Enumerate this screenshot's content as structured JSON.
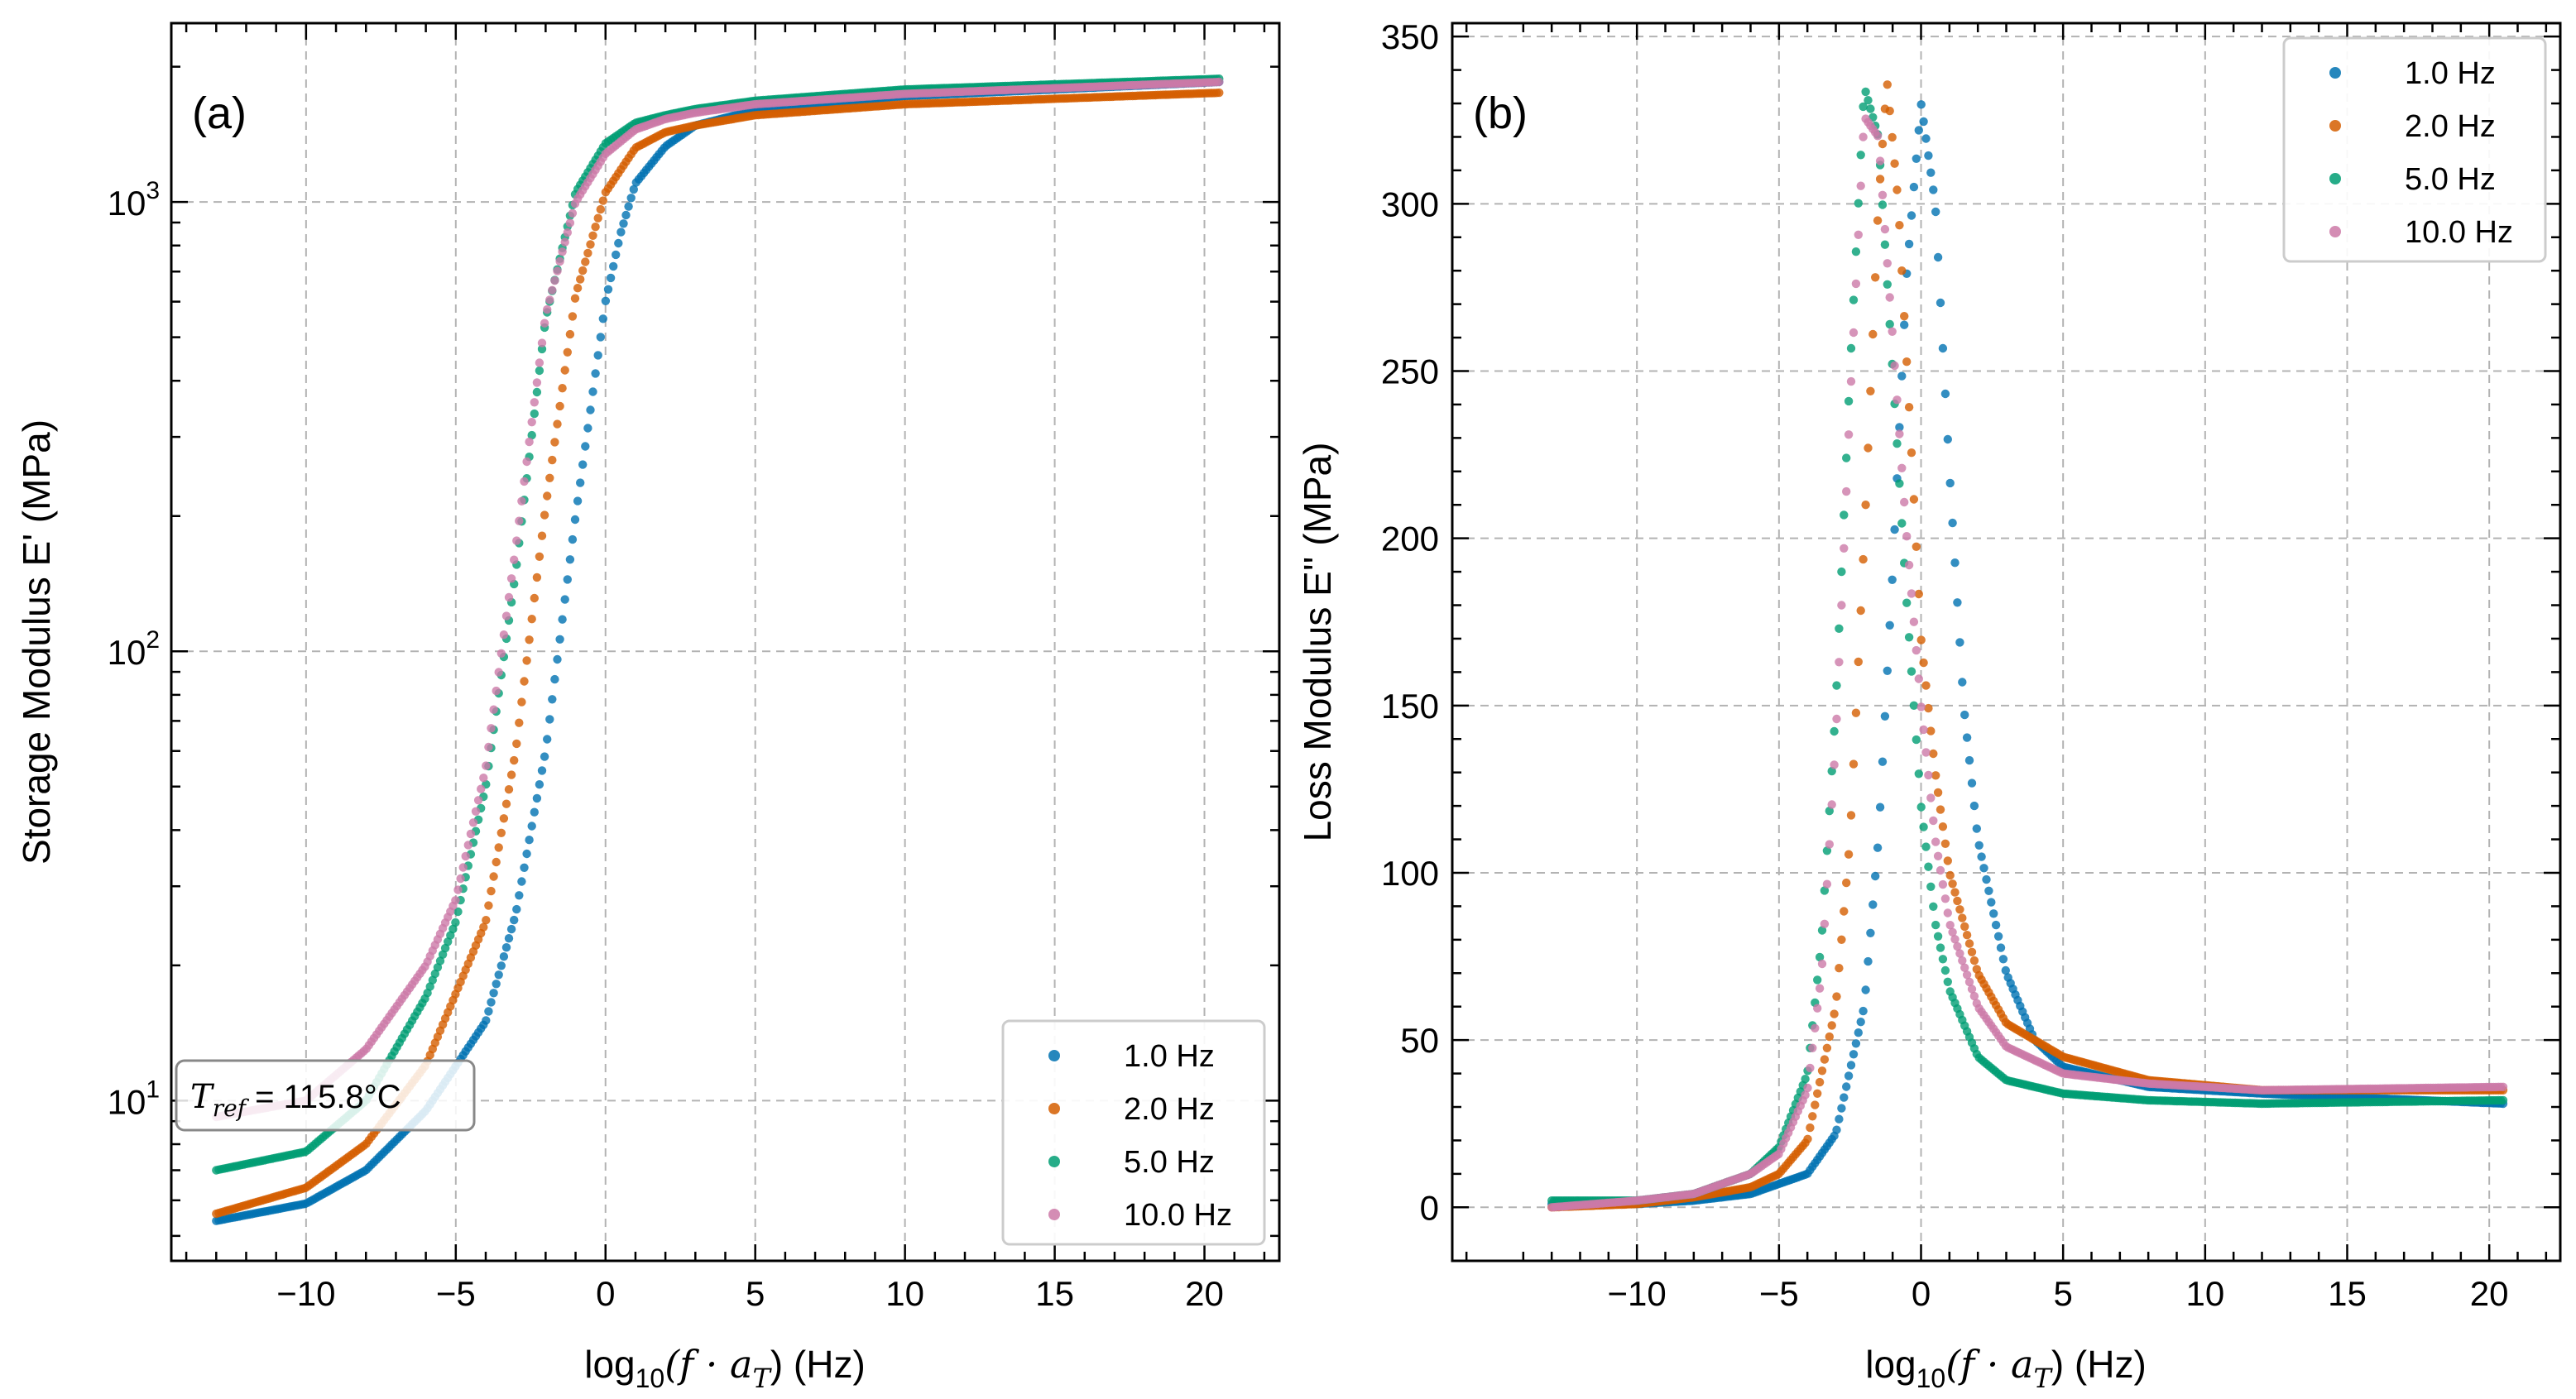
{
  "chart_data": [
    {
      "type": "scatter",
      "panel_label": "(a)",
      "xlabel": "log10(f · aT) (Hz)",
      "xlabel_parts": {
        "pre": "log",
        "sub": "10",
        "mid": "(f · a",
        "sub2": "T",
        "post": ") (Hz)"
      },
      "ylabel": "Storage Modulus E' (MPa)",
      "y_scale": "log",
      "xlim": [
        -14.5,
        22.5
      ],
      "ylim": [
        4.4,
        2500
      ],
      "xticks": [
        -10,
        -5,
        0,
        5,
        10,
        15,
        20
      ],
      "xtick_labels": [
        "−10",
        "−5",
        "0",
        "5",
        "10",
        "15",
        "20"
      ],
      "yticks": [
        10,
        100,
        1000
      ],
      "ytick_labels": [
        {
          "base": "10",
          "exp": "1"
        },
        {
          "base": "10",
          "exp": "2"
        },
        {
          "base": "10",
          "exp": "3"
        }
      ],
      "grid": true,
      "legend": {
        "placement": "lower-right"
      },
      "annotation": {
        "text": "T_ref = 115.8°C",
        "symbol": "T",
        "sub": "ref",
        "value": " = 115.8°C",
        "placement": "lower-left"
      },
      "series": [
        {
          "name": "1.0 Hz",
          "color": "#0072B2",
          "x0": -13.0,
          "x1": 20.5,
          "x": [
            -13,
            -10,
            -8,
            -6,
            -4,
            -3,
            -2,
            -1,
            0,
            0.5,
            1,
            2,
            3,
            5,
            10,
            20.5
          ],
          "y": [
            5.4,
            5.9,
            7.0,
            9.5,
            15,
            26,
            60,
            200,
            600,
            850,
            1100,
            1330,
            1480,
            1600,
            1720,
            1850
          ]
        },
        {
          "name": "2.0 Hz",
          "color": "#D55E00",
          "x0": -13.0,
          "x1": 20.5,
          "x": [
            -13,
            -10,
            -8,
            -6,
            -4,
            -3,
            -2,
            -1,
            0,
            1,
            2,
            3,
            5,
            10,
            20.5
          ],
          "y": [
            5.6,
            6.4,
            8.0,
            12,
            25,
            60,
            210,
            620,
            1050,
            1320,
            1430,
            1480,
            1560,
            1650,
            1750
          ]
        },
        {
          "name": "5.0 Hz",
          "color": "#009E73",
          "x0": -13.0,
          "x1": 20.5,
          "x": [
            -13,
            -10,
            -8,
            -6,
            -5,
            -4,
            -3,
            -2,
            -1,
            0,
            1,
            2,
            3,
            5,
            10,
            20.5
          ],
          "y": [
            7.0,
            7.7,
            10,
            17,
            25,
            50,
            150,
            550,
            1050,
            1350,
            1500,
            1560,
            1610,
            1680,
            1780,
            1880
          ]
        },
        {
          "name": "10.0 Hz",
          "color": "#CC79A7",
          "x0": -13.0,
          "x1": 20.5,
          "x": [
            -13,
            -10,
            -8,
            -6,
            -5,
            -4,
            -3,
            -2,
            -1,
            0,
            1,
            2,
            3,
            5,
            10,
            20.5
          ],
          "y": [
            9.2,
            10,
            13,
            20,
            28,
            55,
            170,
            560,
            1000,
            1280,
            1450,
            1530,
            1580,
            1650,
            1740,
            1850
          ]
        }
      ]
    },
    {
      "type": "scatter",
      "panel_label": "(b)",
      "xlabel": "log10(f · aT) (Hz)",
      "xlabel_parts": {
        "pre": "log",
        "sub": "10",
        "mid": "(f · a",
        "sub2": "T",
        "post": ") (Hz)"
      },
      "ylabel": "Loss Modulus E'' (MPa)",
      "y_scale": "linear",
      "xlim": [
        -16.5,
        22.5
      ],
      "ylim": [
        -16,
        354
      ],
      "xticks": [
        -10,
        -5,
        0,
        5,
        10,
        15,
        20
      ],
      "xtick_labels": [
        "−10",
        "−5",
        "0",
        "5",
        "10",
        "15",
        "20"
      ],
      "yticks": [
        0,
        50,
        100,
        150,
        200,
        250,
        300,
        350
      ],
      "ytick_labels": [
        "0",
        "50",
        "100",
        "150",
        "200",
        "250",
        "300",
        "350"
      ],
      "grid": true,
      "legend": {
        "placement": "top-right"
      },
      "series": [
        {
          "name": "1.0 Hz",
          "color": "#0072B2",
          "x0": -13.0,
          "x1": 20.5,
          "x": [
            -13,
            -10,
            -8,
            -6,
            -4,
            -3,
            -2,
            -1.5,
            -1,
            -0.5,
            0,
            0.5,
            1,
            1.5,
            2,
            3,
            4,
            5,
            8,
            12,
            20.5
          ],
          "y": [
            1,
            1,
            2,
            4,
            10,
            22,
            60,
            110,
            190,
            280,
            330,
            300,
            220,
            150,
            110,
            70,
            50,
            42,
            36,
            34,
            31
          ]
        },
        {
          "name": "2.0 Hz",
          "color": "#D55E00",
          "x0": -13.0,
          "x1": 20.5,
          "x": [
            -13,
            -10,
            -8,
            -6,
            -5,
            -4,
            -3,
            -2.5,
            -2,
            -1.5,
            -1.2,
            -0.8,
            -0.3,
            0,
            0.5,
            1,
            2,
            3,
            5,
            8,
            12,
            20.5
          ],
          "y": [
            0,
            1,
            3,
            6,
            10,
            20,
            60,
            110,
            200,
            300,
            337,
            300,
            220,
            170,
            130,
            100,
            70,
            55,
            45,
            38,
            35,
            35
          ]
        },
        {
          "name": "5.0 Hz",
          "color": "#009E73",
          "x0": -13.0,
          "x1": 20.5,
          "x": [
            -13,
            -10,
            -8,
            -6,
            -5,
            -4,
            -3.5,
            -3,
            -2.5,
            -2,
            -1.5,
            -1,
            -0.5,
            0,
            0.5,
            1,
            2,
            3,
            5,
            8,
            12,
            20.5
          ],
          "y": [
            2,
            2,
            4,
            10,
            18,
            40,
            80,
            150,
            250,
            335,
            320,
            250,
            180,
            120,
            85,
            65,
            45,
            38,
            34,
            32,
            31,
            32
          ]
        },
        {
          "name": "10.0 Hz",
          "color": "#CC79A7",
          "x0": -13.0,
          "x1": 20.5,
          "x": [
            -13,
            -10,
            -8,
            -6,
            -5,
            -4,
            -3.5,
            -3,
            -2.5,
            -2,
            -1.5,
            -1,
            -0.5,
            0,
            0.5,
            1,
            2,
            3,
            5,
            8,
            12,
            20.5
          ],
          "y": [
            0,
            2,
            4,
            10,
            16,
            35,
            70,
            140,
            240,
            326,
            320,
            260,
            200,
            150,
            110,
            85,
            60,
            48,
            40,
            37,
            35,
            36
          ]
        }
      ]
    }
  ]
}
